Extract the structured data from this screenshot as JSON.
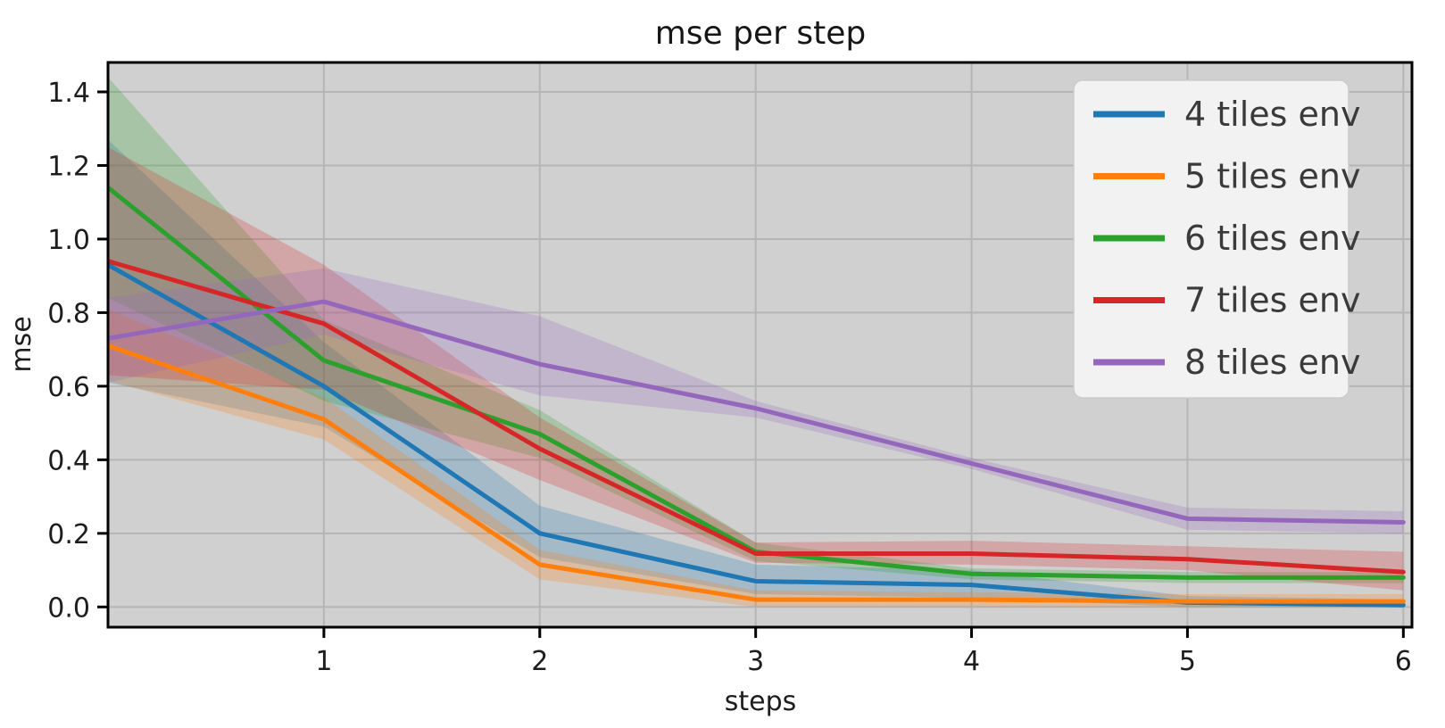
{
  "figure": {
    "title": "mse per step",
    "xlabel": "steps",
    "ylabel": "mse"
  },
  "chart_data": {
    "type": "line",
    "title": "mse per step",
    "xlabel": "steps",
    "ylabel": "mse",
    "x": [
      0,
      1,
      2,
      3,
      4,
      5,
      6
    ],
    "xlim": [
      0,
      6.04
    ],
    "ylim": [
      -0.055,
      1.48
    ],
    "xticks": [
      1,
      2,
      3,
      4,
      5,
      6
    ],
    "yticks": [
      0.0,
      0.2,
      0.4,
      0.6,
      0.8,
      1.0,
      1.2,
      1.4
    ],
    "grid": true,
    "legend_position": "upper right",
    "series": [
      {
        "name": "4 tiles env",
        "color": "#1f77b4",
        "values": [
          0.93,
          0.6,
          0.2,
          0.07,
          0.06,
          0.012,
          0.005
        ],
        "band_low": [
          0.61,
          0.49,
          0.135,
          0.035,
          0.025,
          0.0,
          0.0
        ],
        "band_high": [
          1.27,
          0.72,
          0.275,
          0.115,
          0.1,
          0.03,
          0.02
        ]
      },
      {
        "name": "5 tiles env",
        "color": "#ff7f0e",
        "values": [
          0.71,
          0.51,
          0.115,
          0.02,
          0.02,
          0.015,
          0.015
        ],
        "band_low": [
          0.615,
          0.455,
          0.075,
          0.0,
          0.0,
          0.0,
          0.0
        ],
        "band_high": [
          0.81,
          0.57,
          0.155,
          0.045,
          0.04,
          0.035,
          0.035
        ]
      },
      {
        "name": "6 tiles env",
        "color": "#2ca02c",
        "values": [
          1.14,
          0.67,
          0.47,
          0.15,
          0.09,
          0.08,
          0.08
        ],
        "band_low": [
          0.84,
          0.56,
          0.405,
          0.125,
          0.075,
          0.065,
          0.065
        ],
        "band_high": [
          1.44,
          0.78,
          0.535,
          0.175,
          0.105,
          0.095,
          0.095
        ]
      },
      {
        "name": "7 tiles env",
        "color": "#d62728",
        "values": [
          0.94,
          0.77,
          0.43,
          0.145,
          0.145,
          0.13,
          0.095
        ],
        "band_low": [
          0.63,
          0.59,
          0.345,
          0.12,
          0.115,
          0.1,
          0.045
        ],
        "band_high": [
          1.25,
          0.93,
          0.515,
          0.175,
          0.18,
          0.165,
          0.15
        ]
      },
      {
        "name": "8 tiles env",
        "color": "#9467bd",
        "values": [
          0.73,
          0.83,
          0.66,
          0.54,
          0.39,
          0.24,
          0.23
        ],
        "band_low": [
          0.61,
          0.74,
          0.575,
          0.515,
          0.375,
          0.21,
          0.2
        ],
        "band_high": [
          0.84,
          0.92,
          0.79,
          0.56,
          0.405,
          0.27,
          0.26
        ]
      }
    ],
    "style": {
      "plot_bg": "#d0d0d0",
      "grid_color": "#b5b5b5",
      "spine_color": "#000000",
      "tick_color": "#000000",
      "legend_bg": "#f2f2f2",
      "legend_border": "#cccccc",
      "band_alpha": 0.25
    }
  }
}
